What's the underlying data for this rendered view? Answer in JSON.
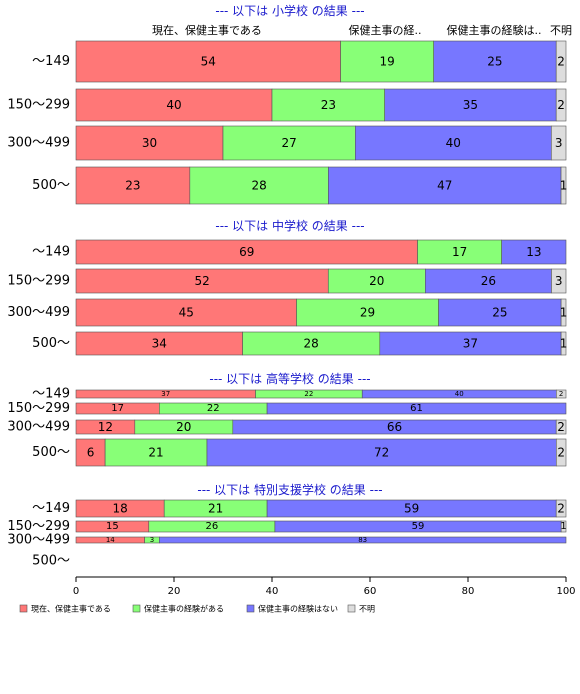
{
  "chart_data": {
    "type": "bar",
    "orientation": "horizontal",
    "stacked": true,
    "column_headers": [
      "現在、保健主事である",
      "保健主事の経..",
      "保健主事の経験は..",
      "不明"
    ],
    "xlim": [
      0,
      100
    ],
    "xticks": [
      "0",
      "20",
      "40",
      "60",
      "80",
      "100"
    ],
    "grid": false,
    "legend_position": "bottom-left",
    "series": [
      {
        "name": "現在、保健主事である",
        "color": "#ff7777"
      },
      {
        "name": "保健主事の経験がある",
        "color": "#88ff77"
      },
      {
        "name": "保健主事の経験はない",
        "color": "#7777ff"
      },
      {
        "name": "不明",
        "color": "#dddddd"
      }
    ],
    "panels": [
      {
        "title": "--- 以下は 小学校 の結果 ---",
        "categories": [
          "～149",
          "150～299",
          "300～499",
          "500～"
        ],
        "values": [
          [
            54,
            19,
            25,
            2
          ],
          [
            40,
            23,
            35,
            2
          ],
          [
            30,
            27,
            40,
            3
          ],
          [
            23,
            28,
            47,
            1
          ]
        ]
      },
      {
        "title": "--- 以下は 中学校 の結果 ---",
        "categories": [
          "～149",
          "150～299",
          "300～499",
          "500～"
        ],
        "values": [
          [
            69,
            17,
            13,
            0
          ],
          [
            52,
            20,
            26,
            3
          ],
          [
            45,
            29,
            25,
            1
          ],
          [
            34,
            28,
            37,
            1
          ]
        ]
      },
      {
        "title": "--- 以下は 高等学校 の結果 ---",
        "categories": [
          "～149",
          "150～299",
          "300～499",
          "500～"
        ],
        "values": [
          [
            37,
            22,
            40,
            2
          ],
          [
            17,
            22,
            61,
            0
          ],
          [
            12,
            20,
            66,
            2
          ],
          [
            6,
            21,
            72,
            2
          ]
        ]
      },
      {
        "title": "--- 以下は 特別支援学校 の結果 ---",
        "categories": [
          "～149",
          "150～299",
          "300～499",
          "500～"
        ],
        "values": [
          [
            18,
            21,
            59,
            2
          ],
          [
            15,
            26,
            59,
            1
          ],
          [
            14,
            3,
            83,
            0
          ],
          null
        ]
      }
    ]
  }
}
